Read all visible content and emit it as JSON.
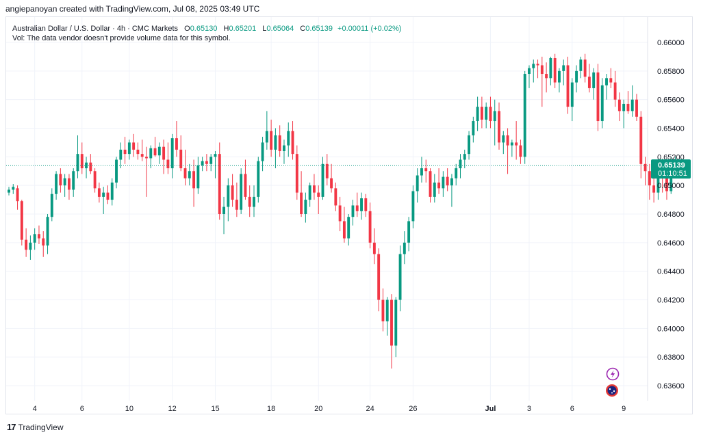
{
  "header": {
    "attribution": "angiepanoyan created with TradingView.com, Jul 08, 2025 03:49 UTC"
  },
  "legend": {
    "symbol": "Australian Dollar / U.S. Dollar · 4h · CMC Markets",
    "open_label": "O",
    "open": "0.65130",
    "high_label": "H",
    "high": "0.65201",
    "low_label": "L",
    "low": "0.65064",
    "close_label": "C",
    "close": "0.65139",
    "change": "+0.00011 (+0.02%)",
    "volume_note": "Vol: The data vendor doesn't provide volume data for this symbol."
  },
  "footer": {
    "brand": "TradingView"
  },
  "colors": {
    "up": "#089981",
    "down": "#f23645",
    "grid": "#f0f3fa",
    "price_line": "#089981"
  },
  "chart_data": {
    "type": "candlestick",
    "instrument": "AUD/USD",
    "timeframe": "4h",
    "ylim": [
      0.635,
      0.661
    ],
    "y_ticks": [
      "0.66000",
      "0.65800",
      "0.65600",
      "0.65400",
      "0.65200",
      "0.65000",
      "0.64800",
      "0.64600",
      "0.64400",
      "0.64200",
      "0.64000",
      "0.63800",
      "0.63600"
    ],
    "x_ticks": [
      {
        "label": "4",
        "index": 6
      },
      {
        "label": "6",
        "index": 17
      },
      {
        "label": "10",
        "index": 28
      },
      {
        "label": "12",
        "index": 38
      },
      {
        "label": "15",
        "index": 48
      },
      {
        "label": "18",
        "index": 61
      },
      {
        "label": "20",
        "index": 72
      },
      {
        "label": "24",
        "index": 84
      },
      {
        "label": "26",
        "index": 94
      },
      {
        "label": "Jul",
        "index": 112,
        "bold": true
      },
      {
        "label": "3",
        "index": 121
      },
      {
        "label": "6",
        "index": 131
      },
      {
        "label": "9",
        "index": 143
      }
    ],
    "total_slots": 146,
    "current_price": "0.65139",
    "countdown": "01:10:51",
    "candles": [
      [
        0.6495,
        0.6499,
        0.6493,
        0.6497
      ],
      [
        0.6497,
        0.6501,
        0.6494,
        0.6499
      ],
      [
        0.6498,
        0.65,
        0.6483,
        0.6489
      ],
      [
        0.6489,
        0.649,
        0.6458,
        0.6462
      ],
      [
        0.6462,
        0.647,
        0.645,
        0.6455
      ],
      [
        0.6455,
        0.6465,
        0.6448,
        0.646
      ],
      [
        0.646,
        0.647,
        0.6455,
        0.6466
      ],
      [
        0.6466,
        0.6472,
        0.6459,
        0.6463
      ],
      [
        0.6463,
        0.6468,
        0.645,
        0.6458
      ],
      [
        0.6458,
        0.648,
        0.6452,
        0.6478
      ],
      [
        0.6478,
        0.6498,
        0.6475,
        0.6494
      ],
      [
        0.6494,
        0.651,
        0.649,
        0.6508
      ],
      [
        0.6508,
        0.6512,
        0.6495,
        0.65
      ],
      [
        0.65,
        0.6508,
        0.6492,
        0.6505
      ],
      [
        0.6505,
        0.6508,
        0.649,
        0.6497
      ],
      [
        0.6497,
        0.6512,
        0.6492,
        0.651
      ],
      [
        0.651,
        0.6535,
        0.6505,
        0.6522
      ],
      [
        0.6522,
        0.653,
        0.6508,
        0.6512
      ],
      [
        0.6512,
        0.652,
        0.6505,
        0.6516
      ],
      [
        0.6516,
        0.6522,
        0.6508,
        0.651
      ],
      [
        0.651,
        0.6512,
        0.6495,
        0.6498
      ],
      [
        0.6498,
        0.6502,
        0.6488,
        0.6492
      ],
      [
        0.6492,
        0.6499,
        0.648,
        0.6495
      ],
      [
        0.6495,
        0.65,
        0.6487,
        0.649
      ],
      [
        0.649,
        0.6505,
        0.6486,
        0.6502
      ],
      [
        0.6502,
        0.652,
        0.6498,
        0.6518
      ],
      [
        0.6518,
        0.653,
        0.6512,
        0.6525
      ],
      [
        0.6525,
        0.6534,
        0.6515,
        0.6522
      ],
      [
        0.6522,
        0.6532,
        0.6518,
        0.653
      ],
      [
        0.653,
        0.6536,
        0.652,
        0.6525
      ],
      [
        0.6525,
        0.653,
        0.6518,
        0.6522
      ],
      [
        0.6522,
        0.6532,
        0.6517,
        0.652
      ],
      [
        0.652,
        0.6527,
        0.6492,
        0.6519
      ],
      [
        0.6519,
        0.6528,
        0.6512,
        0.6526
      ],
      [
        0.6526,
        0.6534,
        0.652,
        0.6521
      ],
      [
        0.6521,
        0.653,
        0.6515,
        0.6527
      ],
      [
        0.6527,
        0.6532,
        0.6508,
        0.6518
      ],
      [
        0.6518,
        0.653,
        0.6508,
        0.6512
      ],
      [
        0.6512,
        0.6536,
        0.6505,
        0.6533
      ],
      [
        0.6533,
        0.6545,
        0.652,
        0.6525
      ],
      [
        0.6525,
        0.6535,
        0.651,
        0.6512
      ],
      [
        0.6512,
        0.6525,
        0.65,
        0.6505
      ],
      [
        0.6505,
        0.6515,
        0.65,
        0.651
      ],
      [
        0.651,
        0.6518,
        0.6485,
        0.6498
      ],
      [
        0.6498,
        0.652,
        0.6494,
        0.6514
      ],
      [
        0.6514,
        0.652,
        0.651,
        0.6517
      ],
      [
        0.6517,
        0.6522,
        0.651,
        0.6515
      ],
      [
        0.6515,
        0.6522,
        0.651,
        0.652
      ],
      [
        0.652,
        0.6524,
        0.6505,
        0.6522
      ],
      [
        0.6522,
        0.653,
        0.6476,
        0.648
      ],
      [
        0.648,
        0.6492,
        0.6466,
        0.6485
      ],
      [
        0.6485,
        0.6505,
        0.6475,
        0.65
      ],
      [
        0.65,
        0.6508,
        0.6485,
        0.649
      ],
      [
        0.649,
        0.6502,
        0.6478,
        0.6483
      ],
      [
        0.6483,
        0.6512,
        0.648,
        0.6508
      ],
      [
        0.6508,
        0.6518,
        0.649,
        0.6492
      ],
      [
        0.6492,
        0.65,
        0.6478,
        0.6485
      ],
      [
        0.6485,
        0.65,
        0.6478,
        0.6492
      ],
      [
        0.6492,
        0.652,
        0.6488,
        0.6517
      ],
      [
        0.6517,
        0.6534,
        0.651,
        0.653
      ],
      [
        0.653,
        0.6552,
        0.6525,
        0.6538
      ],
      [
        0.6538,
        0.6546,
        0.652,
        0.6525
      ],
      [
        0.6525,
        0.654,
        0.6512,
        0.6535
      ],
      [
        0.6535,
        0.6542,
        0.652,
        0.6524
      ],
      [
        0.6524,
        0.6532,
        0.6515,
        0.6528
      ],
      [
        0.6528,
        0.6544,
        0.652,
        0.6538
      ],
      [
        0.6538,
        0.6545,
        0.6518,
        0.6522
      ],
      [
        0.6522,
        0.6528,
        0.649,
        0.6495
      ],
      [
        0.6495,
        0.651,
        0.6478,
        0.648
      ],
      [
        0.648,
        0.6495,
        0.6474,
        0.649
      ],
      [
        0.649,
        0.6502,
        0.6485,
        0.65
      ],
      [
        0.65,
        0.6508,
        0.649,
        0.6495
      ],
      [
        0.6495,
        0.65,
        0.648,
        0.6492
      ],
      [
        0.6492,
        0.652,
        0.649,
        0.6515
      ],
      [
        0.6515,
        0.6522,
        0.65,
        0.6505
      ],
      [
        0.6505,
        0.6515,
        0.6495,
        0.6498
      ],
      [
        0.6498,
        0.6502,
        0.6482,
        0.6486
      ],
      [
        0.6486,
        0.6492,
        0.6468,
        0.6475
      ],
      [
        0.6475,
        0.6485,
        0.646,
        0.6463
      ],
      [
        0.6463,
        0.648,
        0.6458,
        0.6478
      ],
      [
        0.6478,
        0.649,
        0.6472,
        0.6486
      ],
      [
        0.6486,
        0.6495,
        0.6478,
        0.6482
      ],
      [
        0.6482,
        0.6495,
        0.6476,
        0.6491
      ],
      [
        0.6491,
        0.6494,
        0.6478,
        0.6482
      ],
      [
        0.6482,
        0.6488,
        0.6456,
        0.646
      ],
      [
        0.646,
        0.647,
        0.6445,
        0.6452
      ],
      [
        0.6452,
        0.6456,
        0.6412,
        0.642
      ],
      [
        0.642,
        0.6428,
        0.6398,
        0.6405
      ],
      [
        0.6405,
        0.6422,
        0.6395,
        0.642
      ],
      [
        0.642,
        0.6424,
        0.6372,
        0.6388
      ],
      [
        0.6388,
        0.6422,
        0.638,
        0.642
      ],
      [
        0.642,
        0.6458,
        0.6412,
        0.6452
      ],
      [
        0.6452,
        0.6468,
        0.6445,
        0.646
      ],
      [
        0.646,
        0.6478,
        0.6454,
        0.6475
      ],
      [
        0.6475,
        0.65,
        0.647,
        0.6496
      ],
      [
        0.6496,
        0.6512,
        0.6488,
        0.6507
      ],
      [
        0.6507,
        0.652,
        0.6502,
        0.6512
      ],
      [
        0.6512,
        0.6518,
        0.6502,
        0.651
      ],
      [
        0.651,
        0.6512,
        0.6488,
        0.6492
      ],
      [
        0.6492,
        0.6508,
        0.6488,
        0.6502
      ],
      [
        0.6502,
        0.6512,
        0.6494,
        0.6498
      ],
      [
        0.6498,
        0.651,
        0.6492,
        0.6506
      ],
      [
        0.6506,
        0.6512,
        0.6496,
        0.65
      ],
      [
        0.65,
        0.6508,
        0.6485,
        0.6505
      ],
      [
        0.6505,
        0.6515,
        0.65,
        0.6512
      ],
      [
        0.6512,
        0.6522,
        0.6505,
        0.6518
      ],
      [
        0.6518,
        0.6525,
        0.6512,
        0.6522
      ],
      [
        0.6522,
        0.6538,
        0.6518,
        0.6535
      ],
      [
        0.6535,
        0.6548,
        0.653,
        0.6545
      ],
      [
        0.6545,
        0.6562,
        0.6538,
        0.6555
      ],
      [
        0.6555,
        0.6562,
        0.654,
        0.6546
      ],
      [
        0.6546,
        0.6558,
        0.654,
        0.6555
      ],
      [
        0.6555,
        0.6562,
        0.654,
        0.6545
      ],
      [
        0.6545,
        0.656,
        0.6528,
        0.6552
      ],
      [
        0.6552,
        0.6558,
        0.6525,
        0.653
      ],
      [
        0.653,
        0.6538,
        0.6522,
        0.6535
      ],
      [
        0.6535,
        0.654,
        0.6508,
        0.6528
      ],
      [
        0.6528,
        0.6532,
        0.652,
        0.653
      ],
      [
        0.653,
        0.6545,
        0.6518,
        0.6528
      ],
      [
        0.6528,
        0.6532,
        0.6515,
        0.652
      ],
      [
        0.652,
        0.658,
        0.6515,
        0.6578
      ],
      [
        0.6578,
        0.6584,
        0.6568,
        0.6582
      ],
      [
        0.6582,
        0.6588,
        0.6572,
        0.6585
      ],
      [
        0.6585,
        0.6588,
        0.6575,
        0.6584
      ],
      [
        0.6584,
        0.659,
        0.6555,
        0.6578
      ],
      [
        0.6578,
        0.6586,
        0.6565,
        0.6575
      ],
      [
        0.6575,
        0.659,
        0.657,
        0.6589
      ],
      [
        0.6589,
        0.6592,
        0.6568,
        0.6572
      ],
      [
        0.6572,
        0.6582,
        0.6565,
        0.658
      ],
      [
        0.658,
        0.6588,
        0.657,
        0.6584
      ],
      [
        0.6584,
        0.659,
        0.655,
        0.6555
      ],
      [
        0.6555,
        0.6575,
        0.6545,
        0.6572
      ],
      [
        0.6572,
        0.6584,
        0.6565,
        0.658
      ],
      [
        0.658,
        0.659,
        0.6575,
        0.6588
      ],
      [
        0.6588,
        0.6592,
        0.6572,
        0.6576
      ],
      [
        0.6576,
        0.6585,
        0.6565,
        0.6568
      ],
      [
        0.6568,
        0.6582,
        0.656,
        0.6579
      ],
      [
        0.6579,
        0.6585,
        0.6538,
        0.6545
      ],
      [
        0.6545,
        0.6575,
        0.654,
        0.657
      ],
      [
        0.657,
        0.6578,
        0.656,
        0.6575
      ],
      [
        0.6575,
        0.6582,
        0.6568,
        0.6572
      ],
      [
        0.6572,
        0.658,
        0.6555,
        0.656
      ],
      [
        0.656,
        0.6565,
        0.6545,
        0.6552
      ],
      [
        0.6552,
        0.656,
        0.654,
        0.6557
      ],
      [
        0.6557,
        0.6566,
        0.655,
        0.6552
      ],
      [
        0.6552,
        0.657,
        0.6548,
        0.656
      ],
      [
        0.656,
        0.6564,
        0.6545,
        0.6548
      ],
      [
        0.6548,
        0.6552,
        0.6505,
        0.6515
      ],
      [
        0.6515,
        0.652,
        0.65,
        0.651
      ],
      [
        0.651,
        0.6515,
        0.649,
        0.65
      ],
      [
        0.65,
        0.6512,
        0.6488,
        0.6495
      ],
      [
        0.6495,
        0.6517,
        0.649,
        0.6512
      ],
      [
        0.6512,
        0.6515,
        0.6495,
        0.6508
      ],
      [
        0.6508,
        0.6514,
        0.649,
        0.6496
      ],
      [
        0.6496,
        0.652,
        0.6494,
        0.6512
      ],
      [
        0.6513,
        0.652,
        0.6506,
        0.6514
      ]
    ]
  }
}
